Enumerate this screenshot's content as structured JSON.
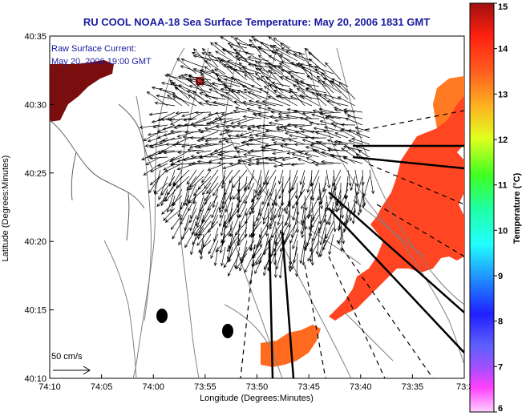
{
  "title": "RU COOL  NOAA-18  Sea Surface Temperature:  May 20, 2006 1831 GMT",
  "legend": {
    "line1": "Raw Surface Current:",
    "line2": "May 20, 2006 19:00 GMT"
  },
  "scale_label": "50 cm/s",
  "axes": {
    "xlabel": "Longitude (Degrees:Minutes)",
    "ylabel": "Latitude (Degrees:Minutes)",
    "xticks": [
      "74:10",
      "74:05",
      "74:00",
      "73:55",
      "73:50",
      "73:45",
      "73:40",
      "73:35",
      "73:3"
    ],
    "yticks": [
      "40:35",
      "40:30",
      "40:25",
      "40:20",
      "40:15",
      "40:10"
    ]
  },
  "colorbar": {
    "label": "Temperature (°C)",
    "ticks": [
      "15",
      "14",
      "13",
      "12",
      "11",
      "10",
      "9",
      "8",
      "7",
      "6"
    ],
    "min": 6,
    "max": 15
  },
  "colors": {
    "title": "#1a1aa0",
    "sst_warm": "#ff4020",
    "sst_hot": "#e01818",
    "sst_land": "#7a0e0e"
  }
}
